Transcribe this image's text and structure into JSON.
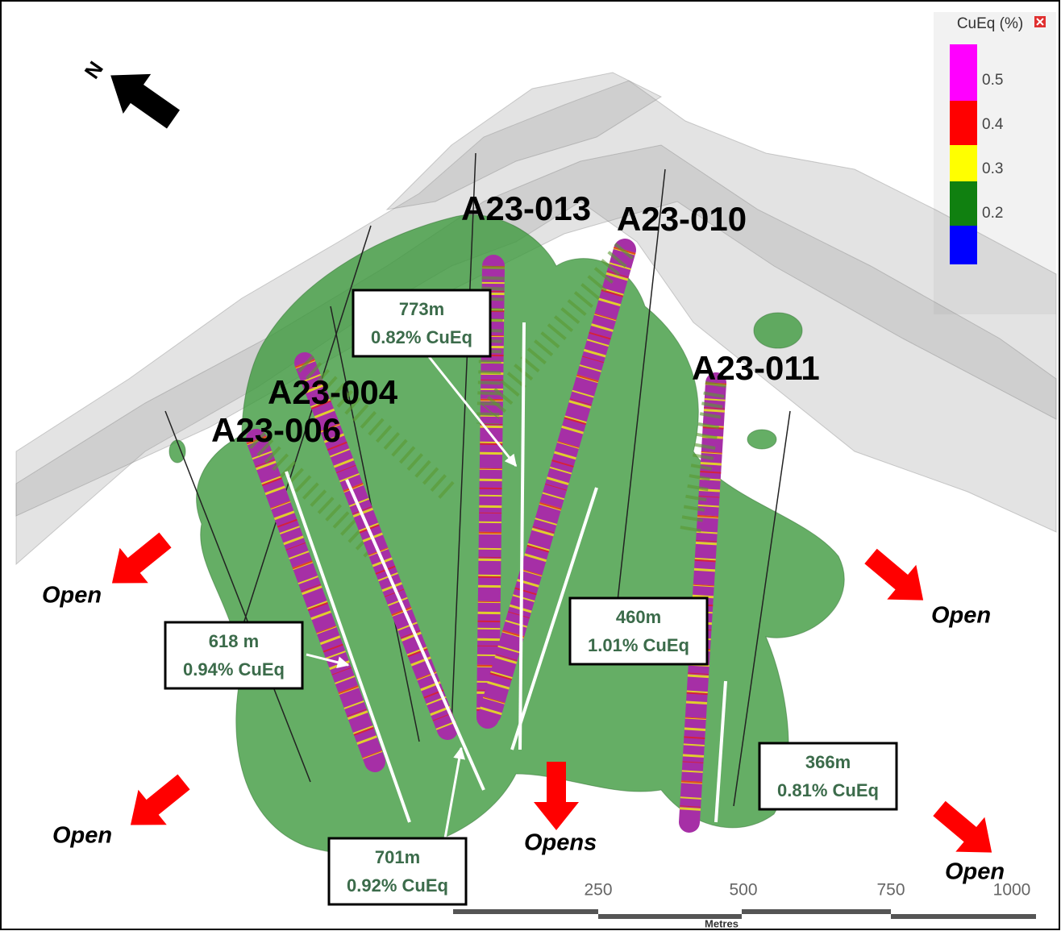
{
  "north": "N",
  "legend": {
    "title": "CuEq (%)",
    "labels": [
      "0.5",
      "0.4",
      "0.3",
      "0.2"
    ]
  },
  "holes": [
    "A23-013",
    "A23-010",
    "A23-011",
    "A23-004",
    "A23-006"
  ],
  "intercepts": [
    {
      "length": "773m",
      "grade": "0.82% CuEq"
    },
    {
      "length": "618 m",
      "grade": "0.94% CuEq"
    },
    {
      "length": "701m",
      "grade": "0.92% CuEq"
    },
    {
      "length": "460m",
      "grade": "1.01% CuEq"
    },
    {
      "length": "366m",
      "grade": "0.81% CuEq"
    }
  ],
  "open_labels": [
    "Open",
    "Open",
    "Open",
    "Opens",
    "Open"
  ],
  "scale": {
    "ticks": [
      "250",
      "500",
      "750",
      "1000"
    ],
    "unit": "Metres"
  }
}
